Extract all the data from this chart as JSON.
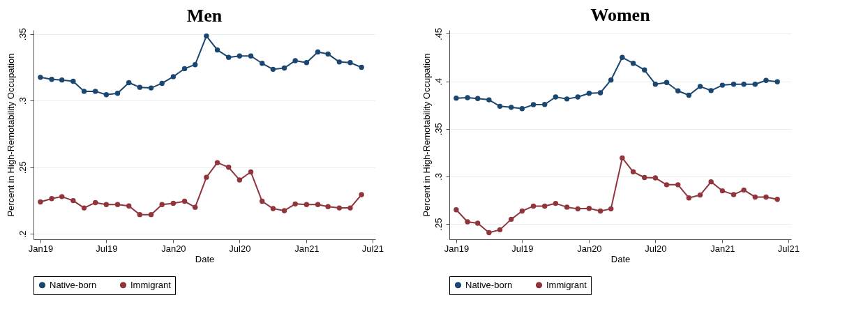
{
  "chart_data": [
    {
      "type": "line",
      "title": "Men",
      "xlabel": "Date",
      "ylabel": "Percent in High-Remotability Occupation",
      "grid": "y",
      "legend": "bottom",
      "marker": "circle",
      "x": [
        "2019-01",
        "2019-02",
        "2019-03",
        "2019-04",
        "2019-05",
        "2019-06",
        "2019-07",
        "2019-08",
        "2019-09",
        "2019-10",
        "2019-11",
        "2019-12",
        "2020-01",
        "2020-02",
        "2020-03",
        "2020-04",
        "2020-05",
        "2020-06",
        "2020-07",
        "2020-08",
        "2020-09",
        "2020-10",
        "2020-11",
        "2020-12",
        "2021-01",
        "2021-02",
        "2021-03",
        "2021-04",
        "2021-05",
        "2021-06"
      ],
      "xlim": [
        "2018-12-13",
        "2021-07-09"
      ],
      "xticks": [
        {
          "value": "2019-01",
          "label": "Jan19"
        },
        {
          "value": "2019-07",
          "label": "Jul19"
        },
        {
          "value": "2020-01",
          "label": "Jan20"
        },
        {
          "value": "2020-07",
          "label": "Jul20"
        },
        {
          "value": "2021-01",
          "label": "Jan21"
        },
        {
          "value": "2021-07",
          "label": "Jul21"
        }
      ],
      "ylim": [
        0.196,
        0.353
      ],
      "yticks": [
        {
          "value": 0.2,
          "label": ".2"
        },
        {
          "value": 0.25,
          "label": ".25"
        },
        {
          "value": 0.3,
          "label": ".3"
        },
        {
          "value": 0.35,
          "label": ".35"
        }
      ],
      "series": [
        {
          "name": "Native-born",
          "color": "#1a476f",
          "values": [
            0.3175,
            0.316,
            0.3155,
            0.3145,
            0.307,
            0.307,
            0.3045,
            0.3055,
            0.3135,
            0.31,
            0.3095,
            0.313,
            0.318,
            0.324,
            0.327,
            0.3485,
            0.338,
            0.3325,
            0.3335,
            0.3335,
            0.328,
            0.3235,
            0.3245,
            0.33,
            0.3285,
            0.3365,
            0.335,
            0.329,
            0.3285,
            0.325
          ]
        },
        {
          "name": "Immigrant",
          "color": "#90353b",
          "values": [
            0.224,
            0.2265,
            0.228,
            0.225,
            0.2195,
            0.2235,
            0.222,
            0.222,
            0.221,
            0.2145,
            0.2145,
            0.222,
            0.223,
            0.2245,
            0.22,
            0.2425,
            0.2535,
            0.25,
            0.2405,
            0.2465,
            0.2245,
            0.219,
            0.2175,
            0.2225,
            0.222,
            0.222,
            0.2205,
            0.2195,
            0.2195,
            0.2295
          ]
        }
      ]
    },
    {
      "type": "line",
      "title": "Women",
      "xlabel": "Date",
      "ylabel": "Percent in High-Remotability Occupation",
      "grid": "y",
      "legend": "bottom",
      "marker": "circle",
      "x": [
        "2019-01",
        "2019-02",
        "2019-03",
        "2019-04",
        "2019-05",
        "2019-06",
        "2019-07",
        "2019-08",
        "2019-09",
        "2019-10",
        "2019-11",
        "2019-12",
        "2020-01",
        "2020-02",
        "2020-03",
        "2020-04",
        "2020-05",
        "2020-06",
        "2020-07",
        "2020-08",
        "2020-09",
        "2020-10",
        "2020-11",
        "2020-12",
        "2021-01",
        "2021-02",
        "2021-03",
        "2021-04",
        "2021-05",
        "2021-06"
      ],
      "xlim": [
        "2018-12-13",
        "2021-07-09"
      ],
      "xticks": [
        {
          "value": "2019-01",
          "label": "Jan19"
        },
        {
          "value": "2019-07",
          "label": "Jul19"
        },
        {
          "value": "2020-01",
          "label": "Jan20"
        },
        {
          "value": "2020-07",
          "label": "Jul20"
        },
        {
          "value": "2021-01",
          "label": "Jan21"
        },
        {
          "value": "2021-07",
          "label": "Jul21"
        }
      ],
      "ylim": [
        0.234,
        0.454
      ],
      "yticks": [
        {
          "value": 0.25,
          "label": ".25"
        },
        {
          "value": 0.3,
          "label": ".3"
        },
        {
          "value": 0.35,
          "label": ".35"
        },
        {
          "value": 0.4,
          "label": ".4"
        },
        {
          "value": 0.45,
          "label": ".45"
        }
      ],
      "series": [
        {
          "name": "Native-born",
          "color": "#1a476f",
          "values": [
            0.3824,
            0.3829,
            0.382,
            0.3806,
            0.3738,
            0.3727,
            0.3713,
            0.3755,
            0.3757,
            0.3836,
            0.3815,
            0.3836,
            0.3875,
            0.388,
            0.4014,
            0.4252,
            0.419,
            0.412,
            0.397,
            0.3988,
            0.39,
            0.3854,
            0.3947,
            0.3903,
            0.396,
            0.397,
            0.397,
            0.397,
            0.401,
            0.3995
          ]
        },
        {
          "name": "Immigrant",
          "color": "#90353b",
          "values": [
            0.265,
            0.2523,
            0.2509,
            0.241,
            0.244,
            0.255,
            0.2637,
            0.2688,
            0.2688,
            0.2717,
            0.2678,
            0.266,
            0.2664,
            0.2637,
            0.266,
            0.3195,
            0.3049,
            0.2989,
            0.2985,
            0.2913,
            0.2913,
            0.2775,
            0.2805,
            0.2944,
            0.2849,
            0.281,
            0.2858,
            0.2784,
            0.2784,
            0.276
          ]
        }
      ]
    }
  ]
}
